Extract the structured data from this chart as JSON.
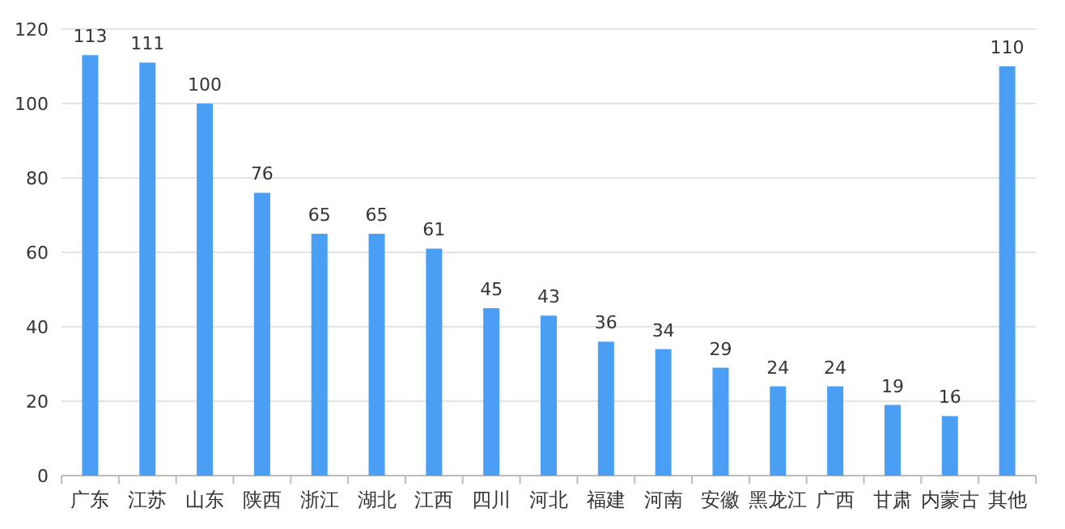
{
  "chart_data": {
    "type": "bar",
    "categories": [
      "广东",
      "江苏",
      "山东",
      "陕西",
      "浙江",
      "湖北",
      "江西",
      "四川",
      "河北",
      "福建",
      "河南",
      "安徽",
      "黑龙江",
      "广西",
      "甘肃",
      "内蒙古",
      "其他"
    ],
    "values": [
      113,
      111,
      100,
      76,
      65,
      65,
      61,
      45,
      43,
      36,
      34,
      29,
      24,
      24,
      19,
      16,
      110
    ],
    "color": "#4a9ff5",
    "ylim": [
      0,
      120
    ],
    "yticks": [
      0,
      20,
      40,
      60,
      80,
      100,
      120
    ],
    "grid": "y",
    "data_labels": true
  }
}
